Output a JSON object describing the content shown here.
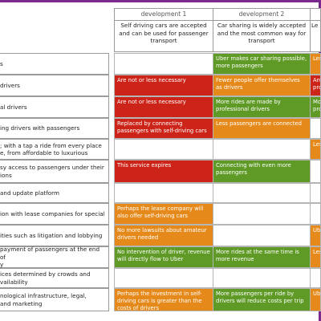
{
  "colors": {
    "red": "#cc2418",
    "orange": "#e58a1a",
    "green": "#5f9a27",
    "frame": "#7a2a8c"
  },
  "headers": [
    {
      "num": "development 1",
      "desc": "Self driving cars are accepted and can be used for passenger transport"
    },
    {
      "num": "development 2",
      "desc": "Car sharing is widely accepted and the most common way for transport"
    },
    {
      "num": "",
      "desc": "Le"
    }
  ],
  "rows": [
    {
      "label": "s",
      "c1": "",
      "c2": "Uber makes car sharing possible, more passengers",
      "c3": "Less"
    },
    {
      "label": "drivers",
      "c1": "Are not or less necessary",
      "c2": "Fewer people offer themselves as drivers",
      "c3": "Am pro"
    },
    {
      "label": "al drivers",
      "c1": "Are not or less necessary",
      "c2": "More rides are made by professional drivers",
      "c3": "Mo pro"
    },
    {
      "label": "ing drivers with passengers",
      "c1": "Replaced by connecting passengers with self-driving cars",
      "c2": "Less passengers are connected",
      "c3": ""
    },
    {
      "label": "; with a tap a ride from every place\ne, from affordable to luxurious",
      "c1": "",
      "c2": "",
      "c3": "Les"
    },
    {
      "label": "sy access to passengers under their\nions",
      "c1": "This service expires",
      "c2": "Connecting with even more passengers",
      "c3": ""
    },
    {
      "label": "and update platform",
      "c1": "",
      "c2": "",
      "c3": ""
    },
    {
      "label": "ion with lease companies for special",
      "c1": "Perhaps the lease company will also offer self-driving cars",
      "c2": "",
      "c3": ""
    },
    {
      "label": "ities such as litigation and lobbying",
      "c1": "No more lawsuits about amateur drivers needed",
      "c2": "",
      "c3": "Ube"
    },
    {
      "label": "payment of passengers at the end of\ny",
      "c1": "No intervention of driver, revenue will directly flow to Uber",
      "c2": "More rides at the same time is more revenue",
      "c3": "Les"
    },
    {
      "label": "ices determined by crowds and\nvailability",
      "c1": "",
      "c2": "",
      "c3": ""
    },
    {
      "label": "nological infrastructure, legal,\nand marketing",
      "c1": "Perhaps the investment in self-driving cars is greater than the costs of drivers",
      "c2": "More passengers per ride by drivers will reduce costs per trip",
      "c3": "Ube"
    }
  ]
}
